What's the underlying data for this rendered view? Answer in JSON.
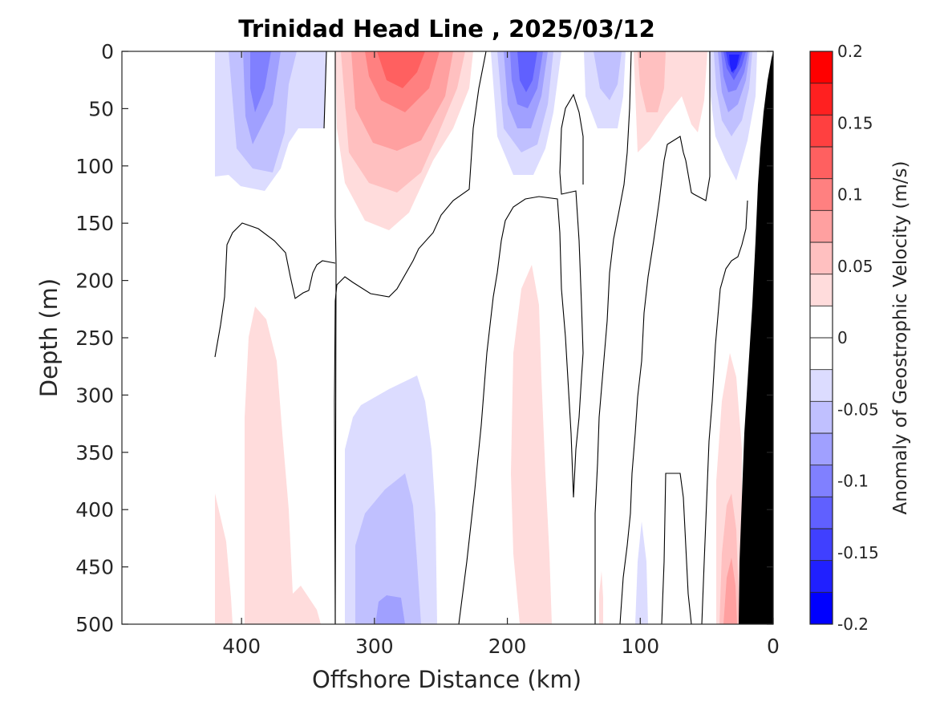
{
  "chart_data": {
    "type": "heatmap",
    "title": "Trinidad Head Line , 2025/03/12",
    "xlabel": "Offshore Distance (km)",
    "ylabel": "Depth (m)",
    "xlim": [
      490,
      0
    ],
    "ylim": [
      0,
      500
    ],
    "x_reversed": true,
    "y_reversed": true,
    "xticks": [
      400,
      300,
      200,
      100,
      0
    ],
    "yticks": [
      0,
      50,
      100,
      150,
      200,
      250,
      300,
      350,
      400,
      450,
      500
    ],
    "colorbar": {
      "label": "Anomaly of Geostrophic Velocity (m/s)",
      "range": [
        -0.2,
        0.2
      ],
      "step": 0.025,
      "ticks": [
        0.2,
        0.15,
        0.1,
        0.05,
        0,
        -0.05,
        -0.1,
        -0.15,
        -0.2
      ],
      "tick_labels": [
        "0.2",
        "0.15",
        "0.1",
        "0.05",
        "0",
        "-0.05",
        "-0.1",
        "-0.15",
        "-0.2"
      ],
      "colors": [
        "#0000ff",
        "#2020ff",
        "#4040ff",
        "#6060ff",
        "#8080ff",
        "#a0a0ff",
        "#c0c0ff",
        "#dcdcff",
        "#ffffff",
        "#ffffff",
        "#ffdcdc",
        "#ffc0c0",
        "#ffa0a0",
        "#ff8080",
        "#ff6060",
        "#ff4040",
        "#ff2020",
        "#ff0000"
      ]
    },
    "anomaly_features": [
      {
        "sign": "negative",
        "x_range": [
          420,
          335
        ],
        "depth_range": [
          0,
          125
        ],
        "peak": -0.1
      },
      {
        "sign": "positive",
        "x_range": [
          330,
          230
        ],
        "depth_range": [
          0,
          155
        ],
        "peak": 0.125
      },
      {
        "sign": "negative",
        "x_range": [
          210,
          160
        ],
        "depth_range": [
          0,
          110
        ],
        "peak": -0.15
      },
      {
        "sign": "negative",
        "x_range": [
          135,
          110
        ],
        "depth_range": [
          0,
          65
        ],
        "peak": -0.075
      },
      {
        "sign": "positive",
        "x_range": [
          110,
          60
        ],
        "depth_range": [
          0,
          90
        ],
        "peak": 0.05
      },
      {
        "sign": "negative",
        "x_range": [
          55,
          20
        ],
        "depth_range": [
          0,
          110
        ],
        "peak": -0.175
      },
      {
        "sign": "positive",
        "x_range": [
          420,
          335
        ],
        "depth_range": [
          220,
          500
        ],
        "peak": 0.05
      },
      {
        "sign": "negative",
        "x_range": [
          325,
          255
        ],
        "depth_range": [
          270,
          500
        ],
        "peak": -0.1
      },
      {
        "sign": "positive",
        "x_range": [
          230,
          180
        ],
        "depth_range": [
          185,
          500
        ],
        "peak": 0.05
      },
      {
        "sign": "positive",
        "x_range": [
          45,
          25
        ],
        "depth_range": [
          260,
          500
        ],
        "peak": 0.1
      }
    ],
    "bathymetry": {
      "color": "#000000",
      "x": [
        0,
        10,
        25,
        30,
        30
      ],
      "depth": [
        0,
        90,
        500,
        500,
        0
      ]
    }
  }
}
